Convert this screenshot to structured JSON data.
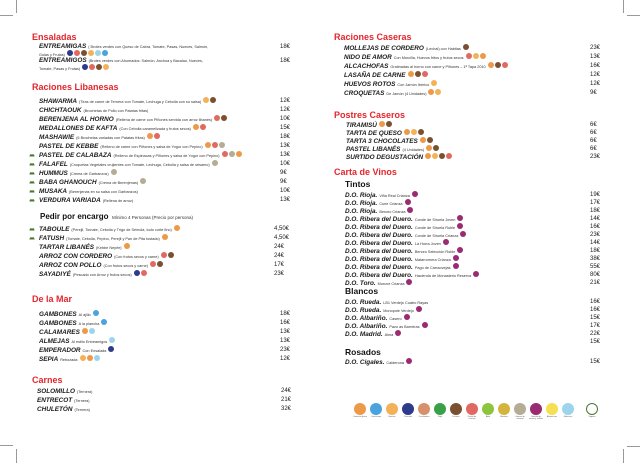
{
  "colors": {
    "section": "#e3262d",
    "gluten": "#ec9a4a",
    "crustaceos": "#4aa3dc",
    "huevos": "#f3b25a",
    "pescado": "#2e3a8c",
    "cacahuetes": "#d8906c",
    "soja": "#3aa048",
    "lacteos": "#7a5030",
    "frutos_secos": "#e06a62",
    "apio": "#8cc43e",
    "mostaza": "#d4b43c",
    "sesamo": "#b4ac94",
    "sulfitos": "#9a2a72",
    "altramuces": "#f4e050",
    "moluscos": "#9cd4ec",
    "vegano": "#4a7a30"
  },
  "left": {
    "ensaladas": {
      "title": "Ensaladas",
      "items": [
        {
          "name": "ENTREAMIGAS",
          "desc": "( Brotes verdes con Queso de Cabra, Tomate, Pasas, Nueces, Salmón, Gulas y Frutas)",
          "price": "18€",
          "icons": [
            "pescado",
            "frutos_secos",
            "lacteos",
            "huevos",
            "moluscos",
            "crustaceos"
          ]
        },
        {
          "name": "ENTREAMIGOS",
          "desc": "(Brotes verdes con Ahumados: Salmón, Anchoa y Bacalao, Nueces, Tomate, Pasas y Frutas)",
          "price": "18€",
          "icons": [
            "pescado",
            "frutos_secos",
            "lacteos",
            "huevos"
          ]
        }
      ]
    },
    "libanesas": {
      "title": "Raciones Libanesas",
      "items": [
        {
          "name": "SHAWARMA",
          "desc": "(Tiras de carne de Ternera con Tomate, Lechuga y Cebolla con su salsa)",
          "price": "12€",
          "icons": [
            "huevos",
            "lacteos"
          ],
          "vegan": false
        },
        {
          "name": "CHICHTAOUK",
          "desc": "(Brochetas de Pollo con Patatas fritas)",
          "price": "12€",
          "icons": [],
          "vegan": false
        },
        {
          "name": "BERENJENA AL HORNO",
          "desc": "(Rellena de carne con Piñones servida con arroz libanés)",
          "price": "10€",
          "icons": [
            "frutos_secos",
            "lacteos"
          ],
          "vegan": false
        },
        {
          "name": "MEDALLONES DE KAFTA",
          "desc": "(Con Cebolla caramelizada y frutos secos)",
          "price": "15€",
          "icons": [
            "gluten",
            "frutos_secos"
          ],
          "vegan": false
        },
        {
          "name": "MASHAWIE",
          "desc": "(6 Brochetas variadas con Patatas fritas)",
          "price": "18€",
          "icons": [
            "gluten",
            "frutos_secos"
          ],
          "vegan": false
        },
        {
          "name": "PASTEL DE KEBBE",
          "desc": "(Relleno de carne con Piñones y salsa de Yogur con Pepino)",
          "price": "13€",
          "icons": [
            "gluten",
            "frutos_secos",
            "sesamo"
          ],
          "vegan": false
        },
        {
          "name": "PASTEL DE CALABAZA",
          "desc": "(Relleno de Espinacas y Piñones y salsa de Yogur con Pepino)",
          "price": "13€",
          "icons": [
            "frutos_secos",
            "sesamo",
            "gluten"
          ],
          "vegan": true
        },
        {
          "name": "FALAFEL",
          "desc": "(Croquetas Vegetales crujientes con Tomate, Lechuga, Cebolla y salsa de sésamo)",
          "price": "10€",
          "icons": [
            "sesamo"
          ],
          "vegan": true
        },
        {
          "name": "HUMMUS",
          "desc": "(Crema de Garbanzos)",
          "price": "9€",
          "icons": [
            "sesamo"
          ],
          "vegan": true
        },
        {
          "name": "BABA GHANOUCH",
          "desc": "(Crema de Berenjenas)",
          "price": "9€",
          "icons": [
            "sesamo"
          ],
          "vegan": true
        },
        {
          "name": "MUSAKA",
          "desc": "(Berenjenas en su salsa con Garbanzos)",
          "price": "10€",
          "icons": [],
          "vegan": true
        },
        {
          "name": "VERDURA VARIADA",
          "desc": "(Rellena de arroz)",
          "price": "13€",
          "icons": [],
          "vegan": true
        }
      ]
    },
    "encargo": {
      "title": "Pedir por encargo",
      "note": "Mínimo 4 Personas (Precio por persona)",
      "items": [
        {
          "name": "TABOULE",
          "desc": "(Perejil, Tomate, Cebolla y Trigo de Sémola, todo corte fino)",
          "price": "4,50€",
          "icons": [
            "gluten"
          ],
          "vegan": true
        },
        {
          "name": "FATUSH",
          "desc": "(Tomate, Cebolla, Pepino, Perejil y Pan de Pita tostado)",
          "price": "4,50€",
          "icons": [
            "gluten"
          ],
          "vegan": true
        },
        {
          "name": "TARTAR LIBANÉS",
          "desc": "(Kebbe Neyée)",
          "price": "24€",
          "icons": [
            "gluten"
          ],
          "vegan": false
        },
        {
          "name": "ARROZ CON CORDERO",
          "desc": "(Con frutos secos y carne)",
          "price": "24€",
          "icons": [
            "frutos_secos",
            "lacteos"
          ],
          "vegan": false
        },
        {
          "name": "ARROZ CON POLLO",
          "desc": "(Con frutos secos y carne)",
          "price": "17€",
          "icons": [
            "frutos_secos",
            "lacteos"
          ],
          "vegan": false
        },
        {
          "name": "SAYADIYÉ",
          "desc": "(Pescado con Arroz y frutos secos)",
          "price": "23€",
          "icons": [
            "pescado",
            "frutos_secos"
          ],
          "vegan": false
        }
      ]
    },
    "mar": {
      "title": "De la Mar",
      "items": [
        {
          "name": "GAMBONES",
          "desc": "Al ajillo",
          "price": "18€",
          "icons": [
            "crustaceos"
          ]
        },
        {
          "name": "GAMBONES",
          "desc": "A la plancha",
          "price": "16€",
          "icons": [
            "crustaceos"
          ]
        },
        {
          "name": "CALAMARES",
          "desc": "",
          "price": "13€",
          "icons": [
            "gluten",
            "moluscos"
          ]
        },
        {
          "name": "ALMEJAS",
          "desc": "Al estilo Entreamigos",
          "price": "13€",
          "icons": [
            "moluscos"
          ]
        },
        {
          "name": "EMPERADOR",
          "desc": "Con Ensalada",
          "price": "23€",
          "icons": [
            "pescado"
          ]
        },
        {
          "name": "SEPIA",
          "desc": "Rebozada",
          "price": "12€",
          "icons": [
            "huevos",
            "gluten",
            "moluscos"
          ]
        }
      ]
    },
    "carnes": {
      "title": "Carnes",
      "items": [
        {
          "name": "SOLOMILLO",
          "desc": "(Ternera)",
          "price": "24€"
        },
        {
          "name": "ENTRECOT",
          "desc": "(Ternera)",
          "price": "21€"
        },
        {
          "name": "CHULETÓN",
          "desc": "(Ternera)",
          "price": "32€"
        }
      ]
    }
  },
  "right": {
    "caseras": {
      "title": "Raciones Caseras",
      "items": [
        {
          "name": "MOLLEJAS DE CORDERO",
          "desc": "(Lechal) con Habitas",
          "price": "23€",
          "icons": [
            "lacteos"
          ]
        },
        {
          "name": "NIDO DE AMOR",
          "desc": "Con Morcilla, Huevos fritos y frutos secos",
          "price": "13€",
          "icons": [
            "frutos_secos",
            "huevos",
            "gluten"
          ]
        },
        {
          "name": "ALCACHOFAS",
          "desc": "Gratinadas al horno con carne y Piñones – 1ª Tapa 2010",
          "price": "16€",
          "icons": [
            "gluten",
            "lacteos",
            "frutos_secos"
          ]
        },
        {
          "name": "LASAÑA DE CARNE",
          "desc": "",
          "price": "12€",
          "icons": [
            "gluten",
            "lacteos",
            "frutos_secos"
          ]
        },
        {
          "name": "HUEVOS ROTOS",
          "desc": "Con Jamón Ibérico",
          "price": "12€",
          "icons": [
            "huevos"
          ]
        },
        {
          "name": "CROQUETAS",
          "desc": "De Jamón (4 Unidades)",
          "price": "9€",
          "icons": [
            "gluten",
            "huevos"
          ]
        }
      ]
    },
    "postres": {
      "title": "Postres Caseros",
      "items": [
        {
          "name": "TIRAMISÚ",
          "desc": "",
          "price": "6€",
          "icons": [
            "gluten",
            "lacteos"
          ]
        },
        {
          "name": "TARTA DE QUESO",
          "desc": "",
          "price": "6€",
          "icons": [
            "gluten",
            "huevos",
            "lacteos"
          ]
        },
        {
          "name": "TARTA 3 CHOCOLATES",
          "desc": "",
          "price": "6€",
          "icons": [
            "gluten",
            "lacteos"
          ]
        },
        {
          "name": "PASTEL LIBANÉS",
          "desc": "(4 Unidades)",
          "price": "6€",
          "icons": [
            "gluten",
            "lacteos"
          ]
        },
        {
          "name": "SURTIDO DEGUSTACIÓN",
          "desc": "",
          "price": "23€",
          "icons": [
            "gluten",
            "huevos",
            "lacteos",
            "frutos_secos"
          ]
        }
      ]
    },
    "vinos": {
      "title": "Carta de Vinos",
      "tintos": {
        "title": "Tintos",
        "items": [
          {
            "name": "D.O. Rioja.",
            "desc": "Viña Real Crianza",
            "price": "19€"
          },
          {
            "name": "D.O. Rioja.",
            "desc": "Cune Crianza",
            "price": "17€"
          },
          {
            "name": "D.O. Rioja.",
            "desc": "Berceo Crianza",
            "price": "18€"
          },
          {
            "name": "D.O. Ribera del Duero.",
            "desc": "Conde de Siruela Joven",
            "price": "14€"
          },
          {
            "name": "D.O. Ribera del Duero.",
            "desc": "Conde de Siruela Roble",
            "price": "16€"
          },
          {
            "name": "D.O. Ribera del Duero.",
            "desc": "Conde de Siruela Crianza",
            "price": "23€"
          },
          {
            "name": "D.O. Ribera del Duero.",
            "desc": "La Horra Joven",
            "price": "14€"
          },
          {
            "name": "D.O. Ribera del Duero.",
            "desc": "Berceo Selección Roble",
            "price": "18€"
          },
          {
            "name": "D.O. Ribera del Duero.",
            "desc": "Matarromera Crianza",
            "price": "38€"
          },
          {
            "name": "D.O. Ribera del Duero.",
            "desc": "Pago de Carraovejas",
            "price": "55€"
          },
          {
            "name": "D.O. Ribera del Duero.",
            "desc": "Hacienda de Monasterio Reserva",
            "price": "80€"
          },
          {
            "name": "D.O. Toro.",
            "desc": "Muruve Crianza",
            "price": "21€"
          }
        ]
      },
      "blancos": {
        "title": "Blancos",
        "items": [
          {
            "name": "D.O. Rueda.",
            "desc": "LB1 Verdejo Cuatro Rayas",
            "price": "16€",
            "icon": false
          },
          {
            "name": "D.O. Rueda.",
            "desc": "Monopole Verdejo",
            "price": "16€",
            "icon": true
          },
          {
            "name": "D.O. Albariño.",
            "desc": "Casero",
            "price": "15€",
            "icon": true
          },
          {
            "name": "D.O. Albariño.",
            "desc": "Pazo as Barreiras",
            "price": "17€",
            "icon": true
          },
          {
            "name": "D.O. Madrid.",
            "desc": "Alma",
            "price": "22€",
            "icon": true
          },
          {
            "name": "",
            "desc": "",
            "price": "15€",
            "icon": false
          }
        ]
      },
      "rosados": {
        "title": "Rosados",
        "items": [
          {
            "name": "D.O. Cigales.",
            "desc": "Calderona",
            "price": "15€"
          }
        ]
      }
    },
    "legend": [
      {
        "key": "gluten",
        "label": "Contiene gluten"
      },
      {
        "key": "crustaceos",
        "label": "Crustáceos"
      },
      {
        "key": "huevos",
        "label": "Huevos"
      },
      {
        "key": "pescado",
        "label": "Pescado"
      },
      {
        "key": "cacahuetes",
        "label": "Cacahuetes"
      },
      {
        "key": "soja",
        "label": "Soja"
      },
      {
        "key": "lacteos",
        "label": "Lácteos"
      },
      {
        "key": "frutos_secos",
        "label": "Frutos de cáscara"
      },
      {
        "key": "apio",
        "label": "Apio"
      },
      {
        "key": "mostaza",
        "label": "Mostaza"
      },
      {
        "key": "sesamo",
        "label": "Granos de sésamo"
      },
      {
        "key": "sulfitos",
        "label": "Dióxido de azufre y sulfitos"
      },
      {
        "key": "altramuces",
        "label": "Altramuces"
      },
      {
        "key": "moluscos",
        "label": "Moluscos"
      },
      {
        "key": "vegano",
        "label": "Vegano"
      }
    ]
  }
}
